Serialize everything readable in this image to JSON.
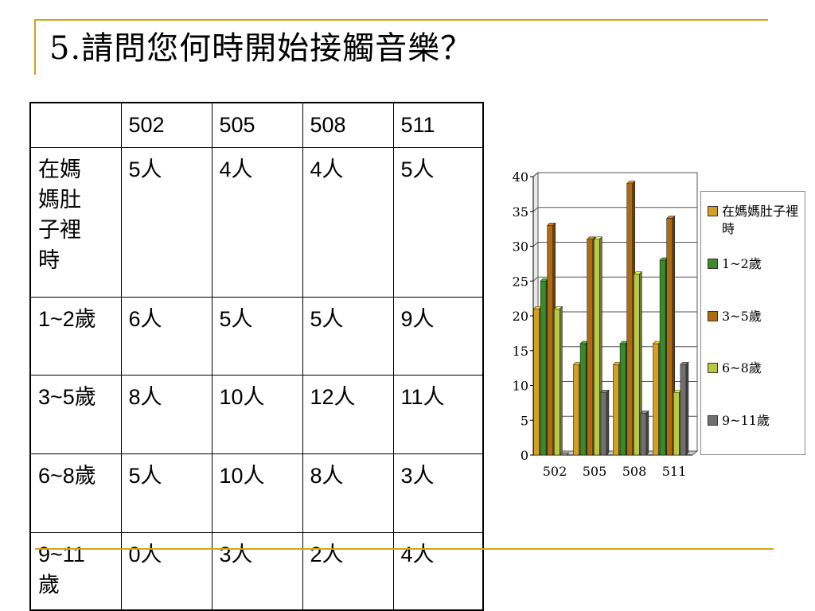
{
  "slide": {
    "title": "5.請問您何時開始接觸音樂？"
  },
  "table": {
    "header": [
      "",
      "502",
      "505",
      "508",
      "511"
    ],
    "rows": [
      {
        "label": "在媽媽肚子裡時",
        "cells": [
          "5人",
          "4人",
          "4人",
          "5人"
        ]
      },
      {
        "label": "1~2歲",
        "cells": [
          "6人",
          "5人",
          "5人",
          "9人"
        ]
      },
      {
        "label": "3~5歲",
        "cells": [
          "8人",
          "10人",
          "12人",
          "11人"
        ]
      },
      {
        "label": "6~8歲",
        "cells": [
          "5人",
          "10人",
          "8人",
          "3人"
        ]
      },
      {
        "label": "9~11歲",
        "cells": [
          "0人",
          "3人",
          "2人",
          "4人"
        ]
      }
    ]
  },
  "chart_data": {
    "type": "bar",
    "categories": [
      "502",
      "505",
      "508",
      "511"
    ],
    "series": [
      {
        "name": "在媽媽肚子裡時",
        "values": [
          21,
          13,
          13,
          16
        ],
        "color": "#d4a020"
      },
      {
        "name": "1~2歲",
        "values": [
          25,
          16,
          16,
          28
        ],
        "color": "#3a8a2a"
      },
      {
        "name": "3~5歲",
        "values": [
          33,
          31,
          39,
          34
        ],
        "color": "#b06a10"
      },
      {
        "name": "6~8歲",
        "values": [
          21,
          31,
          26,
          9
        ],
        "color": "#b8c840"
      },
      {
        "name": "9~11歲",
        "values": [
          0,
          9,
          6,
          13
        ],
        "color": "#707070"
      }
    ],
    "yticks": [
      "0",
      "5",
      "10",
      "15",
      "20",
      "25",
      "30",
      "35",
      "40"
    ],
    "ylim": [
      0,
      40
    ],
    "grid": true,
    "legend": "right"
  }
}
